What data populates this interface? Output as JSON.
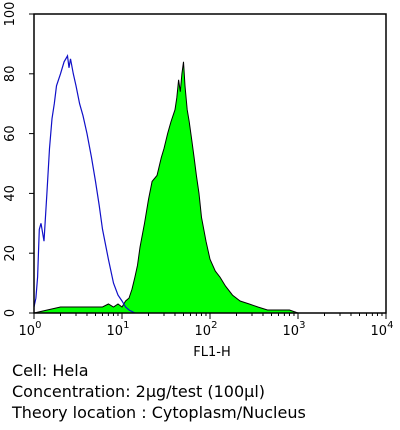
{
  "chart_data": {
    "type": "area",
    "title": "",
    "xlabel": "FL1-H",
    "ylabel": "",
    "x_scale": "log",
    "xlim": [
      1,
      10000
    ],
    "ylim": [
      0,
      100
    ],
    "x_ticks": [
      {
        "base": "10",
        "exp": "0",
        "value": 1
      },
      {
        "base": "10",
        "exp": "1",
        "value": 10
      },
      {
        "base": "10",
        "exp": "2",
        "value": 100
      },
      {
        "base": "10",
        "exp": "3",
        "value": 1000
      },
      {
        "base": "10",
        "exp": "4",
        "value": 10000
      }
    ],
    "y_ticks": [
      "0",
      "20",
      "40",
      "60",
      "80",
      "100"
    ],
    "grid": false,
    "series": [
      {
        "style": "filled",
        "color": "#00FF00",
        "x": [
          1,
          2,
          3,
          4,
          5,
          6,
          7,
          8,
          9,
          10,
          11,
          12,
          13,
          14,
          15,
          16,
          18,
          20,
          22,
          25,
          28,
          30,
          33,
          36,
          40,
          42,
          44,
          46,
          48,
          50,
          52,
          55,
          58,
          62,
          66,
          70,
          75,
          80,
          90,
          100,
          115,
          130,
          150,
          180,
          220,
          280,
          350,
          450,
          600,
          800,
          1000,
          10000
        ],
        "y": [
          0,
          2,
          2,
          2,
          2,
          2,
          3,
          2,
          3,
          2,
          4,
          5,
          8,
          12,
          16,
          22,
          30,
          38,
          44,
          46,
          52,
          55,
          60,
          64,
          68,
          72,
          78,
          74,
          80,
          84,
          76,
          68,
          64,
          58,
          52,
          46,
          40,
          32,
          24,
          18,
          14,
          12,
          9,
          6,
          4,
          3,
          2,
          1,
          1,
          1,
          0,
          0
        ]
      },
      {
        "style": "outline",
        "color": "#1010C8",
        "x": [
          1,
          1.05,
          1.1,
          1.15,
          1.2,
          1.3,
          1.4,
          1.5,
          1.6,
          1.7,
          1.8,
          2.0,
          2.2,
          2.4,
          2.5,
          2.6,
          2.8,
          3.0,
          3.3,
          3.6,
          4.0,
          4.5,
          5.0,
          5.5,
          6.0,
          7.0,
          8.0,
          9.0,
          10,
          11,
          12,
          14
        ],
        "y": [
          2,
          5,
          12,
          28,
          30,
          24,
          40,
          55,
          65,
          70,
          76,
          80,
          84,
          86,
          82,
          85,
          80,
          76,
          70,
          66,
          60,
          52,
          44,
          36,
          28,
          18,
          10,
          6,
          4,
          2,
          1,
          0
        ]
      }
    ]
  },
  "caption": {
    "line1": "Cell: Hela",
    "line2": "Concentration: 2μg/test (100μl)",
    "line3": "Theory location : Cytoplasm/Nucleus"
  }
}
